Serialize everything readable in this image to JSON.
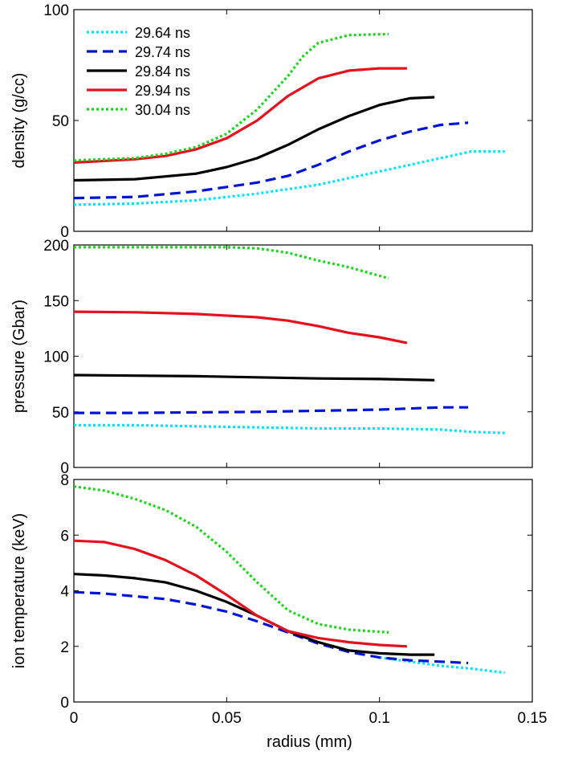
{
  "chart_data": [
    {
      "type": "line",
      "ylabel": "density (g/cc)",
      "xlim": [
        0,
        0.15
      ],
      "ylim": [
        0,
        100
      ],
      "yticks": [
        0,
        50,
        100
      ],
      "grid": false,
      "legend": "top-left",
      "series": [
        {
          "name": "29.64 ns",
          "color": "#00e5ff",
          "dash": "dot",
          "x": [
            0,
            0.02,
            0.04,
            0.06,
            0.08,
            0.1,
            0.12,
            0.13,
            0.141
          ],
          "y": [
            12,
            12.5,
            14,
            17,
            21,
            27,
            33,
            36,
            36
          ]
        },
        {
          "name": "29.74 ns",
          "color": "#0014d8",
          "dash": "dash",
          "x": [
            0,
            0.02,
            0.04,
            0.06,
            0.07,
            0.08,
            0.09,
            0.1,
            0.11,
            0.12,
            0.129
          ],
          "y": [
            15,
            15.5,
            18,
            22,
            25,
            30,
            36,
            41,
            45,
            48,
            49
          ]
        },
        {
          "name": "29.84 ns",
          "color": "#000000",
          "dash": "solid",
          "x": [
            0,
            0.02,
            0.04,
            0.05,
            0.06,
            0.07,
            0.08,
            0.09,
            0.1,
            0.11,
            0.118
          ],
          "y": [
            23,
            23.5,
            26,
            29,
            33,
            39,
            46,
            52,
            57,
            60,
            60.5
          ]
        },
        {
          "name": "29.94 ns",
          "color": "#e8101c",
          "dash": "solid",
          "x": [
            0,
            0.02,
            0.03,
            0.04,
            0.05,
            0.06,
            0.07,
            0.08,
            0.09,
            0.1,
            0.109
          ],
          "y": [
            31,
            32.5,
            34,
            37,
            42,
            50,
            61,
            69,
            72.5,
            73.5,
            73.5
          ]
        },
        {
          "name": "30.04 ns",
          "color": "#19d81c",
          "dash": "dot",
          "x": [
            0,
            0.02,
            0.03,
            0.04,
            0.05,
            0.06,
            0.07,
            0.075,
            0.08,
            0.09,
            0.103
          ],
          "y": [
            32,
            33,
            35,
            38,
            44,
            55,
            70,
            79,
            85,
            88.5,
            89
          ]
        }
      ]
    },
    {
      "type": "line",
      "ylabel": "pressure (Gbar)",
      "xlim": [
        0,
        0.15
      ],
      "ylim": [
        0,
        200
      ],
      "yticks": [
        0,
        50,
        100,
        150,
        200
      ],
      "grid": false,
      "series": [
        {
          "name": "29.64 ns",
          "color": "#00e5ff",
          "dash": "dot",
          "x": [
            0,
            0.02,
            0.04,
            0.06,
            0.08,
            0.1,
            0.12,
            0.13,
            0.141
          ],
          "y": [
            38,
            38,
            37,
            36,
            35,
            35,
            34,
            32,
            31
          ]
        },
        {
          "name": "29.74 ns",
          "color": "#0014d8",
          "dash": "dash",
          "x": [
            0,
            0.02,
            0.04,
            0.06,
            0.08,
            0.1,
            0.12,
            0.129
          ],
          "y": [
            49,
            49,
            49.5,
            50,
            51,
            52,
            54,
            54
          ]
        },
        {
          "name": "29.84 ns",
          "color": "#000000",
          "dash": "solid",
          "x": [
            0,
            0.02,
            0.04,
            0.06,
            0.08,
            0.1,
            0.118
          ],
          "y": [
            83,
            82.5,
            82,
            81,
            80,
            79.5,
            78.5
          ]
        },
        {
          "name": "29.94 ns",
          "color": "#e8101c",
          "dash": "solid",
          "x": [
            0,
            0.02,
            0.04,
            0.06,
            0.07,
            0.08,
            0.09,
            0.1,
            0.109
          ],
          "y": [
            140,
            139.5,
            138,
            135,
            132,
            127,
            121,
            117,
            112
          ]
        },
        {
          "name": "30.04 ns",
          "color": "#19d81c",
          "dash": "dot",
          "x": [
            0,
            0.02,
            0.04,
            0.05,
            0.06,
            0.07,
            0.08,
            0.09,
            0.103
          ],
          "y": [
            198,
            198,
            198,
            198,
            197,
            193,
            186,
            180,
            170
          ]
        }
      ]
    },
    {
      "type": "line",
      "ylabel": "ion temperature (keV)",
      "xlabel": "radius (mm)",
      "xlim": [
        0,
        0.15
      ],
      "ylim": [
        0,
        8
      ],
      "yticks": [
        0,
        2,
        4,
        6,
        8
      ],
      "xticks": [
        0,
        0.05,
        0.1,
        0.15
      ],
      "grid": false,
      "series": [
        {
          "name": "29.64 ns",
          "color": "#00e5ff",
          "dash": "dot",
          "x": [
            0.1,
            0.11,
            0.12,
            0.13,
            0.141
          ],
          "y": [
            1.6,
            1.45,
            1.3,
            1.2,
            1.05
          ]
        },
        {
          "name": "29.74 ns",
          "color": "#0014d8",
          "dash": "dash",
          "x": [
            0,
            0.01,
            0.02,
            0.03,
            0.04,
            0.05,
            0.06,
            0.07,
            0.08,
            0.09,
            0.1,
            0.11,
            0.12,
            0.129
          ],
          "y": [
            3.95,
            3.9,
            3.8,
            3.7,
            3.5,
            3.25,
            2.9,
            2.5,
            2.1,
            1.8,
            1.6,
            1.5,
            1.45,
            1.4
          ]
        },
        {
          "name": "29.84 ns",
          "color": "#000000",
          "dash": "solid",
          "x": [
            0,
            0.01,
            0.02,
            0.03,
            0.04,
            0.05,
            0.06,
            0.07,
            0.08,
            0.09,
            0.1,
            0.11,
            0.118
          ],
          "y": [
            4.6,
            4.55,
            4.45,
            4.3,
            4.0,
            3.6,
            3.1,
            2.55,
            2.15,
            1.85,
            1.75,
            1.7,
            1.7
          ]
        },
        {
          "name": "29.94 ns",
          "color": "#e8101c",
          "dash": "solid",
          "x": [
            0,
            0.01,
            0.02,
            0.03,
            0.04,
            0.05,
            0.06,
            0.07,
            0.08,
            0.09,
            0.1,
            0.109
          ],
          "y": [
            5.8,
            5.75,
            5.5,
            5.1,
            4.55,
            3.85,
            3.1,
            2.55,
            2.3,
            2.15,
            2.05,
            2.0
          ]
        },
        {
          "name": "30.04 ns",
          "color": "#19d81c",
          "dash": "dot",
          "x": [
            0,
            0.01,
            0.02,
            0.03,
            0.04,
            0.05,
            0.06,
            0.07,
            0.08,
            0.09,
            0.103
          ],
          "y": [
            7.75,
            7.6,
            7.3,
            6.9,
            6.3,
            5.4,
            4.3,
            3.3,
            2.8,
            2.6,
            2.5
          ]
        }
      ]
    }
  ]
}
